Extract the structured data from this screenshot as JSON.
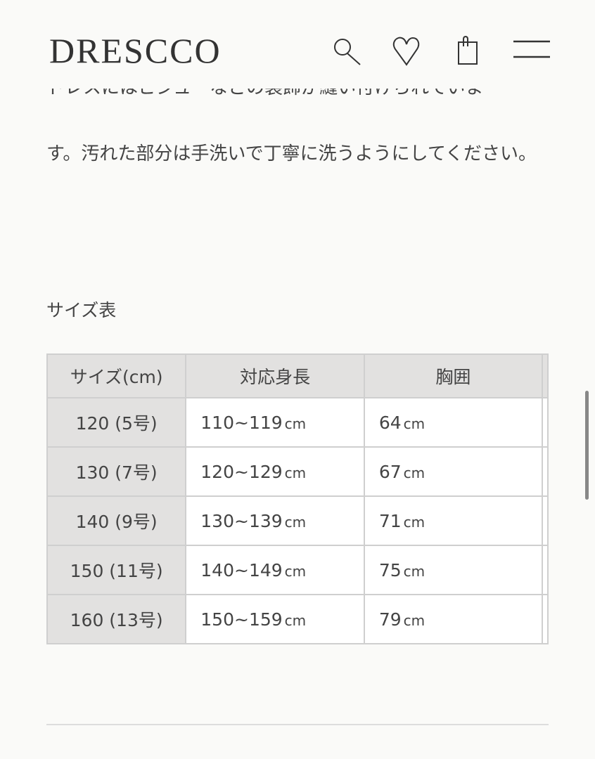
{
  "header": {
    "logo": "DRESCCO",
    "icons": [
      "search-icon",
      "heart-icon",
      "shopping-bag-icon",
      "menu-icon"
    ]
  },
  "description": {
    "clipped_line": "ドレスにはビジューなどの装飾が縫い付けられていま",
    "text": "す。汚れた部分は手洗いで丁寧に洗うようにしてください。"
  },
  "size_table": {
    "caption": "サイズ表",
    "headers": [
      "サイズ(cm)",
      "対応身長",
      "胸囲"
    ],
    "unit": "cm",
    "rows": [
      {
        "size": "120 (5号)",
        "height": "110~119",
        "chest": "64"
      },
      {
        "size": "130 (7号)",
        "height": "120~129",
        "chest": "67"
      },
      {
        "size": "140 (9号)",
        "height": "130~139",
        "chest": "71"
      },
      {
        "size": "150 (11号)",
        "height": "140~149",
        "chest": "75"
      },
      {
        "size": "160 (13号)",
        "height": "150~159",
        "chest": "79"
      }
    ]
  }
}
